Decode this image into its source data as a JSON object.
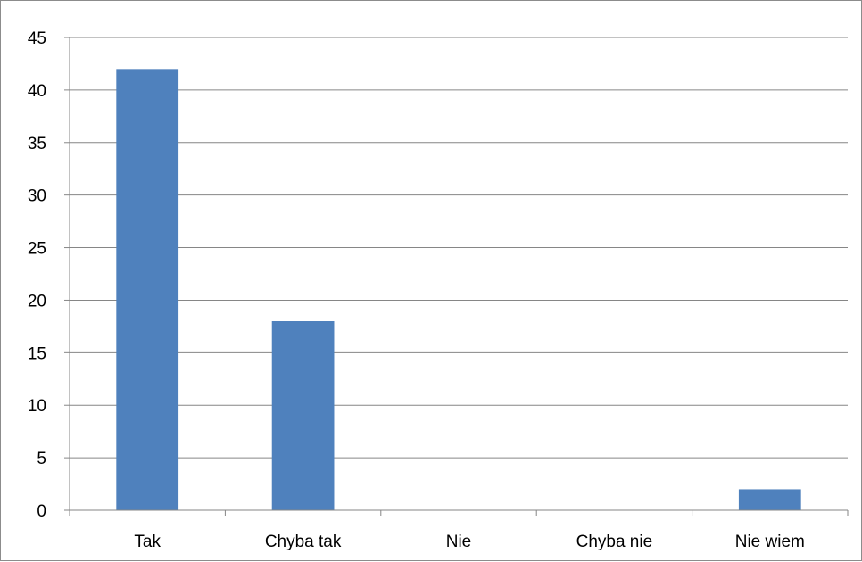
{
  "chart_data": {
    "type": "bar",
    "categories": [
      "Tak",
      "Chyba tak",
      "Nie",
      "Chyba nie",
      "Nie wiem"
    ],
    "values": [
      42,
      18,
      0,
      0,
      2
    ],
    "title": "",
    "xlabel": "",
    "ylabel": "",
    "ylim": [
      0,
      45
    ],
    "yticks": [
      0,
      5,
      10,
      15,
      20,
      25,
      30,
      35,
      40,
      45
    ],
    "grid": true,
    "legend": "none",
    "bar_color": "#4f81bd",
    "grid_color": "#868686"
  }
}
